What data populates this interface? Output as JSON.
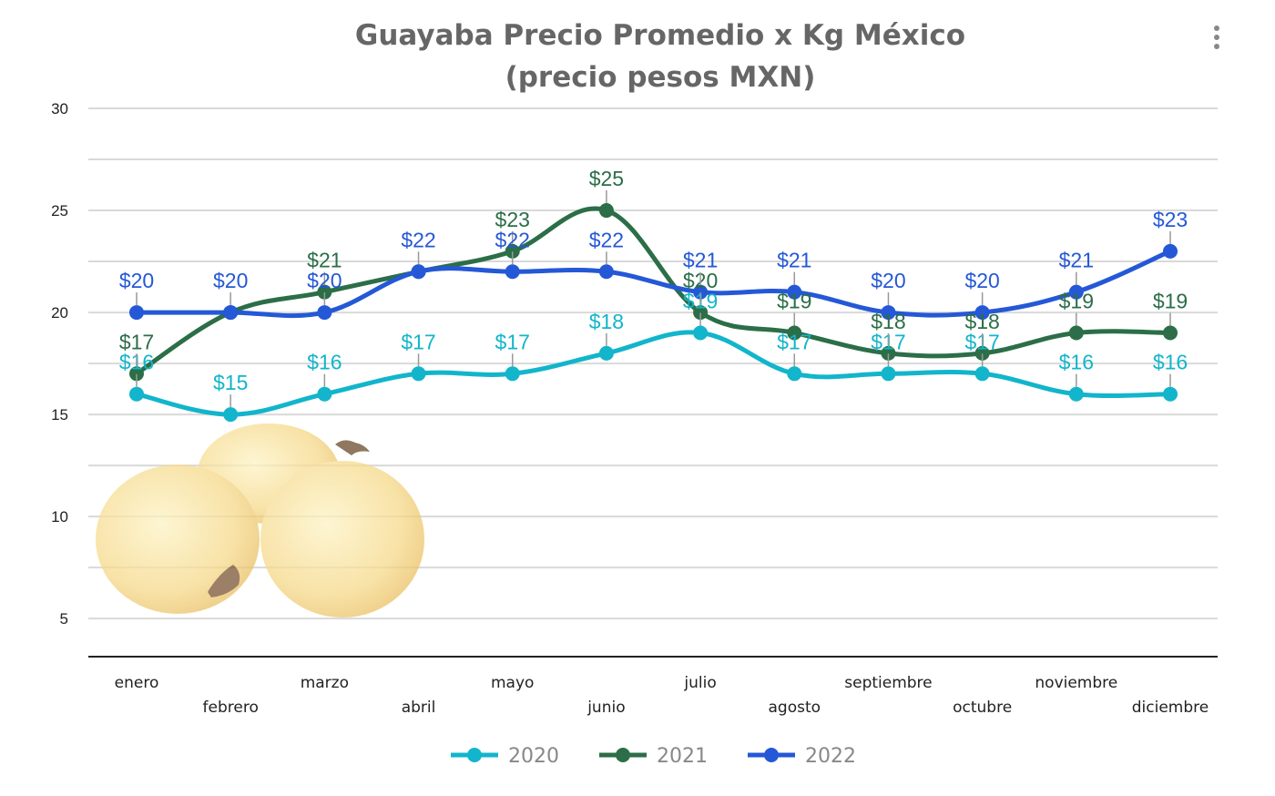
{
  "chart_data": {
    "type": "line",
    "title_line1": "Guayaba Precio Promedio x Kg México",
    "title_line2": "(precio pesos MXN)",
    "categories": [
      "enero",
      "febrero",
      "marzo",
      "abril",
      "mayo",
      "junio",
      "julio",
      "agosto",
      "septiembre",
      "octubre",
      "noviembre",
      "diciembre"
    ],
    "ylim": [
      3,
      30
    ],
    "yticks": [
      5,
      10,
      15,
      20,
      25,
      30
    ],
    "grid": true,
    "legend_position": "bottom",
    "label_prefix": "$",
    "series": [
      {
        "name": "2020",
        "color": "#12b5cb",
        "values": [
          16,
          15,
          16,
          17,
          17,
          18,
          19,
          17,
          17,
          17,
          16,
          16
        ],
        "labels": [
          true,
          true,
          true,
          true,
          true,
          true,
          true,
          true,
          true,
          true,
          true,
          true
        ]
      },
      {
        "name": "2021",
        "color": "#2b6e47",
        "values": [
          17,
          20,
          21,
          22,
          23,
          25,
          20,
          19,
          18,
          18,
          19,
          19
        ],
        "labels": [
          true,
          false,
          true,
          false,
          true,
          true,
          true,
          true,
          true,
          true,
          true,
          true
        ]
      },
      {
        "name": "2022",
        "color": "#2458d6",
        "values": [
          20,
          20,
          20,
          22,
          22,
          22,
          21,
          21,
          20,
          20,
          21,
          23
        ],
        "labels": [
          true,
          true,
          true,
          true,
          true,
          true,
          true,
          true,
          true,
          true,
          true,
          true
        ]
      }
    ]
  },
  "decoration": {
    "image": "guava-fruits"
  }
}
